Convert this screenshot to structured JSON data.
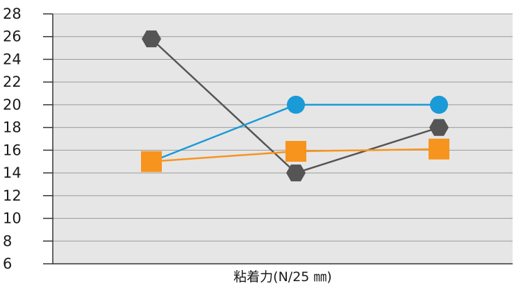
{
  "chart_data": {
    "type": "line",
    "title": "",
    "xlabel": "粘着力(N/25 ㎜)",
    "ylabel": "",
    "ylim": [
      6,
      28
    ],
    "yticks": [
      6,
      8,
      10,
      12,
      14,
      16,
      18,
      20,
      22,
      24,
      26,
      28
    ],
    "grid": true,
    "x": [
      1,
      2,
      3
    ],
    "series": [
      {
        "marker": "hexagon",
        "color": "#555555",
        "values": [
          25.8,
          14,
          18
        ]
      },
      {
        "marker": "circle",
        "color": "#1a9ad6",
        "values": [
          15,
          20,
          20
        ]
      },
      {
        "marker": "square",
        "color": "#f7941d",
        "values": [
          15,
          15.9,
          16.1
        ]
      }
    ]
  }
}
